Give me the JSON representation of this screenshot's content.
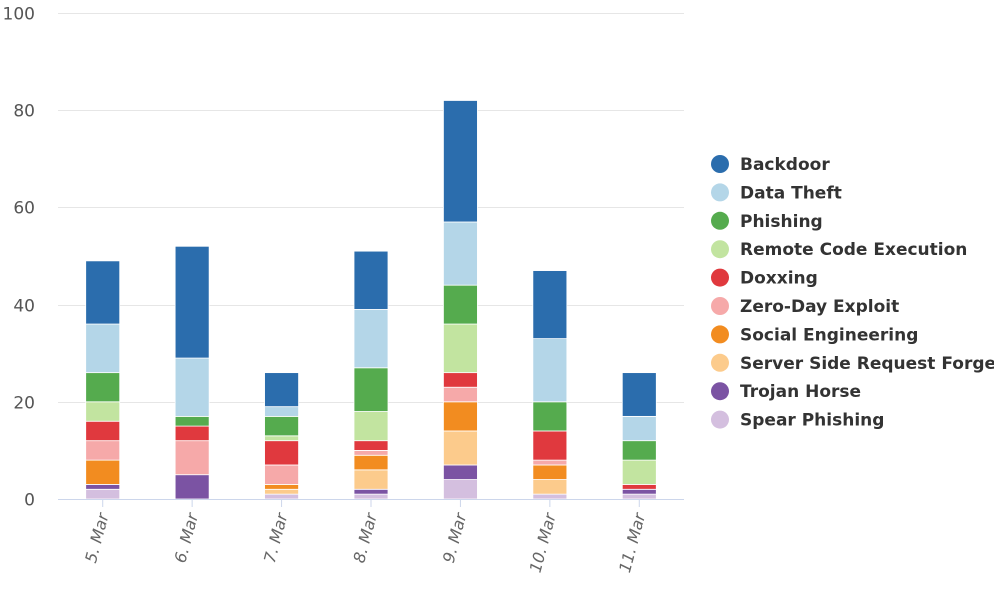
{
  "chart_data": {
    "type": "bar",
    "stacked": true,
    "categories": [
      "5. Mar",
      "6. Mar",
      "7. Mar",
      "8. Mar",
      "9. Mar",
      "10. Mar",
      "11. Mar"
    ],
    "ylim": [
      0,
      100
    ],
    "yticks": [
      0,
      20,
      40,
      60,
      80,
      100
    ],
    "grid": true,
    "legend_position": "right",
    "title": "",
    "xlabel": "",
    "ylabel": "",
    "series": [
      {
        "name": "Spear Phishing",
        "color": "#d4bfdf",
        "values": [
          2,
          0,
          1,
          1,
          4,
          1,
          1
        ]
      },
      {
        "name": "Trojan Horse",
        "color": "#7b53a3",
        "values": [
          1,
          5,
          0,
          1,
          3,
          0,
          1
        ]
      },
      {
        "name": "Server Side Request Forgery",
        "color": "#fccb8c",
        "values": [
          0,
          0,
          1,
          4,
          7,
          3,
          0
        ]
      },
      {
        "name": "Social Engineering",
        "color": "#f28c20",
        "values": [
          5,
          0,
          1,
          3,
          6,
          3,
          0
        ]
      },
      {
        "name": "Zero-Day Exploit",
        "color": "#f6a9a9",
        "values": [
          4,
          7,
          4,
          1,
          3,
          1,
          0
        ]
      },
      {
        "name": "Doxxing",
        "color": "#e0393e",
        "values": [
          4,
          3,
          5,
          2,
          3,
          6,
          1
        ]
      },
      {
        "name": "Remote Code Execution",
        "color": "#c2e4a0",
        "values": [
          4,
          0,
          1,
          6,
          10,
          0,
          5
        ]
      },
      {
        "name": "Phishing",
        "color": "#55ab4e",
        "values": [
          6,
          2,
          4,
          9,
          8,
          6,
          4
        ]
      },
      {
        "name": "Data Theft",
        "color": "#b4d6e8",
        "values": [
          10,
          12,
          2,
          12,
          13,
          13,
          5
        ]
      },
      {
        "name": "Backdoor",
        "color": "#2b6dad",
        "values": [
          13,
          23,
          7,
          12,
          25,
          14,
          9
        ]
      }
    ],
    "legend_order": [
      "Backdoor",
      "Data Theft",
      "Phishing",
      "Remote Code Execution",
      "Doxxing",
      "Zero-Day Exploit",
      "Social Engineering",
      "Server Side Request Forgery",
      "Trojan Horse",
      "Spear Phishing"
    ]
  }
}
